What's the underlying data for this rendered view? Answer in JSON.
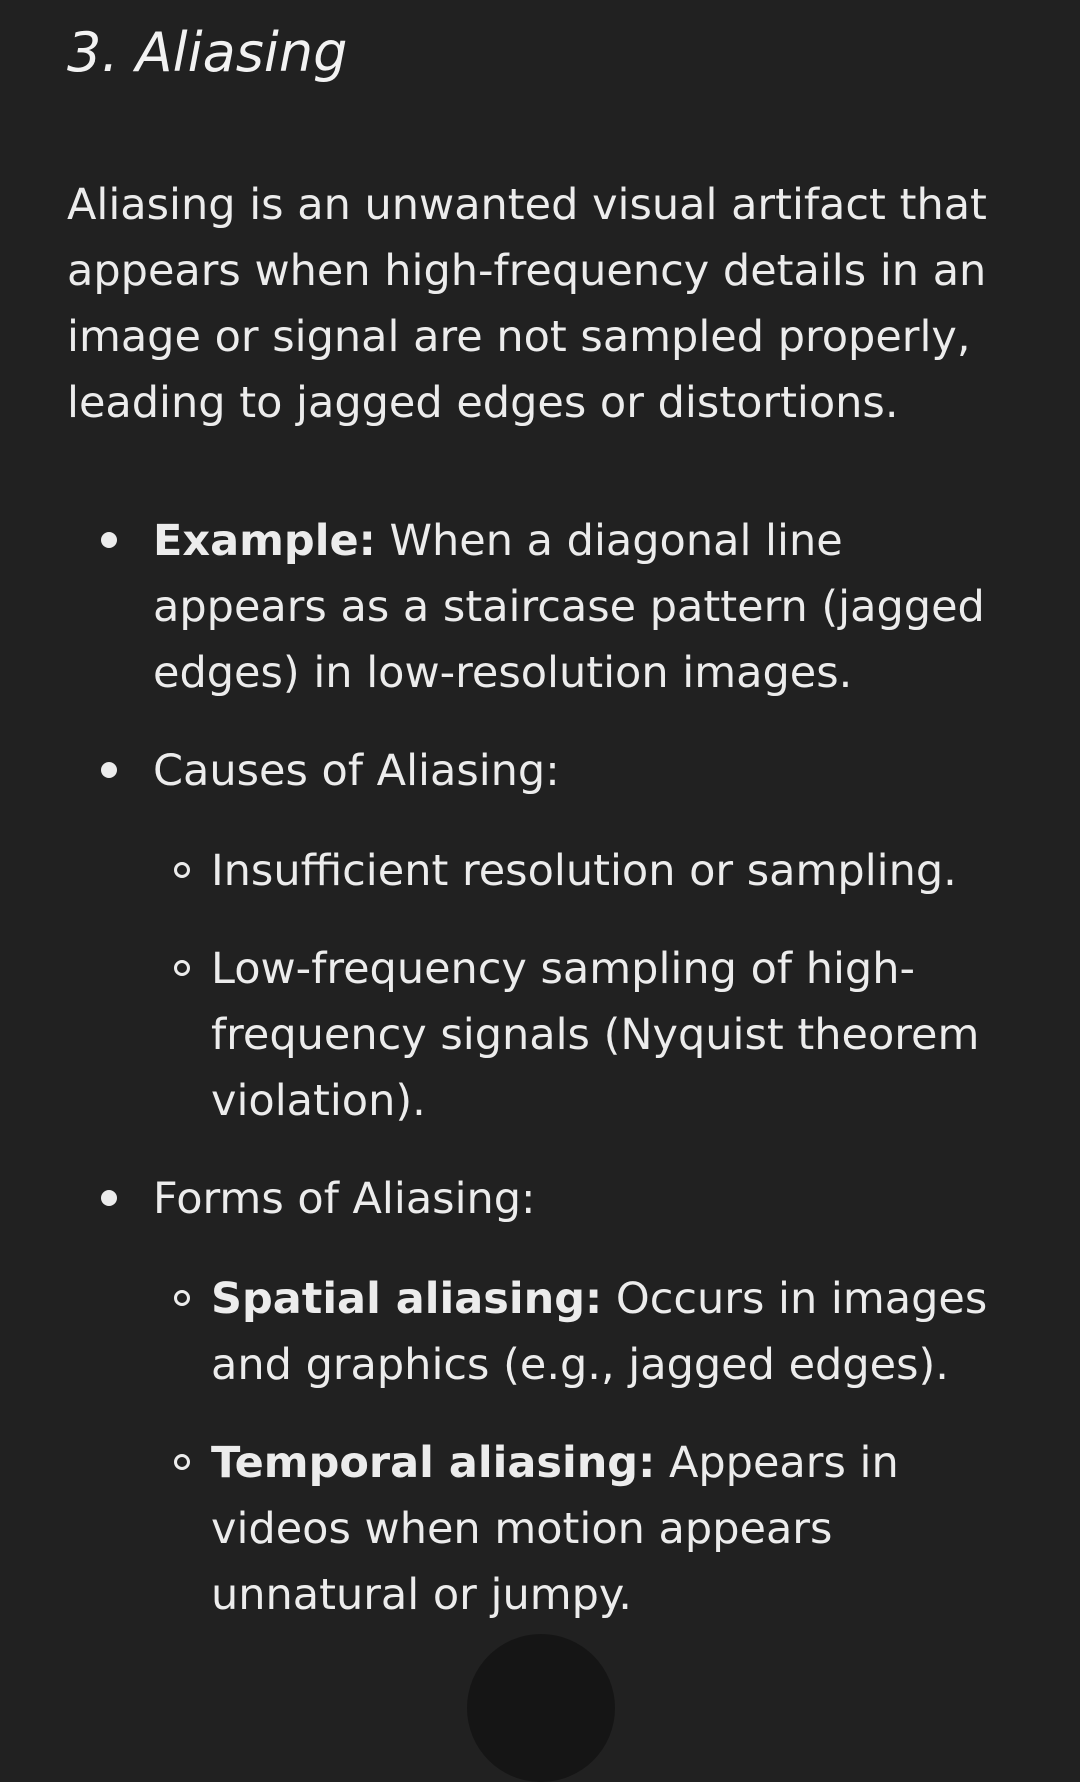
{
  "section": {
    "title": "3. Aliasing",
    "intro": "Aliasing is an unwanted visual artifact that appears when high-frequency details in an image or signal are not sampled properly, leading to jagged edges or distortions."
  },
  "bullets": {
    "example": {
      "label": "Example:",
      "text": " When a diagonal line appears as a staircase pattern (jagged edges) in low-resolution images."
    },
    "causes": {
      "label": "Causes of Aliasing:",
      "items": [
        "Insufficient resolution or sampling.",
        "Low-frequency sampling of high-frequency signals (Nyquist theorem violation)."
      ]
    },
    "forms": {
      "label": "Forms of Aliasing:",
      "items": [
        {
          "label": "Spatial aliasing:",
          "text": " Occurs in images and graphics (e.g., jagged edges)."
        },
        {
          "label": "Temporal aliasing:",
          "text": " Appears in videos when motion appears unnatural or jumpy."
        }
      ]
    }
  }
}
